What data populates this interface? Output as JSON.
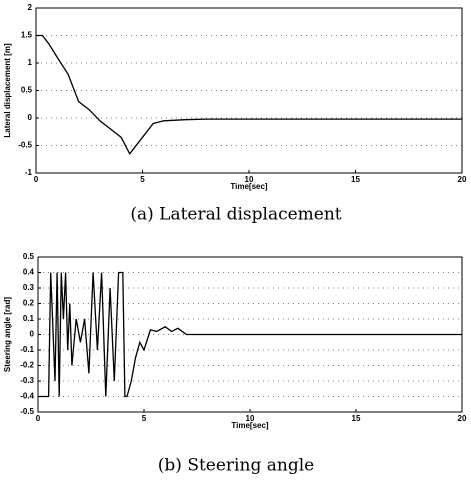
{
  "chart_data": [
    {
      "type": "line",
      "caption": "(a) Lateral displacement",
      "xlabel": "Time[sec]",
      "ylabel": "Lateral displacement [m]",
      "x": [
        0,
        0.3,
        0.6,
        1,
        1.5,
        2,
        2.5,
        3,
        3.5,
        4,
        4.4,
        5,
        5.5,
        6,
        7,
        8,
        10,
        20
      ],
      "series": [
        {
          "name": "Lateral displacement",
          "color": "#000000",
          "values": [
            1.5,
            1.5,
            1.35,
            1.1,
            0.8,
            0.3,
            0.15,
            -0.05,
            -0.2,
            -0.35,
            -0.65,
            -0.35,
            -0.1,
            -0.05,
            -0.03,
            -0.02,
            -0.02,
            -0.02
          ]
        }
      ],
      "xlim": [
        0,
        20
      ],
      "ylim": [
        -1,
        2
      ],
      "xticks": [
        0,
        5,
        10,
        15,
        20
      ],
      "yticks": [
        -1,
        -0.5,
        0,
        0.5,
        1,
        1.5,
        2
      ],
      "grid": true
    },
    {
      "type": "line",
      "caption": "(b) Steering angle",
      "xlabel": "Time[sec]",
      "ylabel": "Steering angle [rad]",
      "x": [
        0,
        0.5,
        0.6,
        0.8,
        0.9,
        1.0,
        1.1,
        1.2,
        1.3,
        1.4,
        1.5,
        1.6,
        1.8,
        2.0,
        2.2,
        2.4,
        2.6,
        2.8,
        3.0,
        3.2,
        3.4,
        3.6,
        3.8,
        4.0,
        4.1,
        4.2,
        4.4,
        4.6,
        4.8,
        5.0,
        5.3,
        5.6,
        6.0,
        6.3,
        6.6,
        7.0,
        8.0,
        10,
        20
      ],
      "series": [
        {
          "name": "Steering angle",
          "color": "#000000",
          "values": [
            -0.4,
            -0.4,
            0.4,
            -0.3,
            0.4,
            -0.4,
            0.4,
            0.1,
            0.4,
            -0.1,
            0.2,
            -0.2,
            0.1,
            -0.05,
            0.1,
            -0.25,
            0.4,
            -0.1,
            0.4,
            -0.4,
            0.3,
            -0.3,
            0.4,
            0.4,
            -0.4,
            -0.4,
            -0.3,
            -0.15,
            -0.05,
            -0.1,
            0.03,
            0.02,
            0.05,
            0.02,
            0.04,
            0.0,
            0,
            0,
            0
          ]
        }
      ],
      "xlim": [
        0,
        20
      ],
      "ylim": [
        -0.5,
        0.5
      ],
      "xticks": [
        0,
        5,
        10,
        15,
        20
      ],
      "yticks": [
        -0.5,
        -0.4,
        -0.3,
        -0.2,
        -0.1,
        0,
        0.1,
        0.2,
        0.3,
        0.4,
        0.5
      ],
      "grid": true
    }
  ]
}
